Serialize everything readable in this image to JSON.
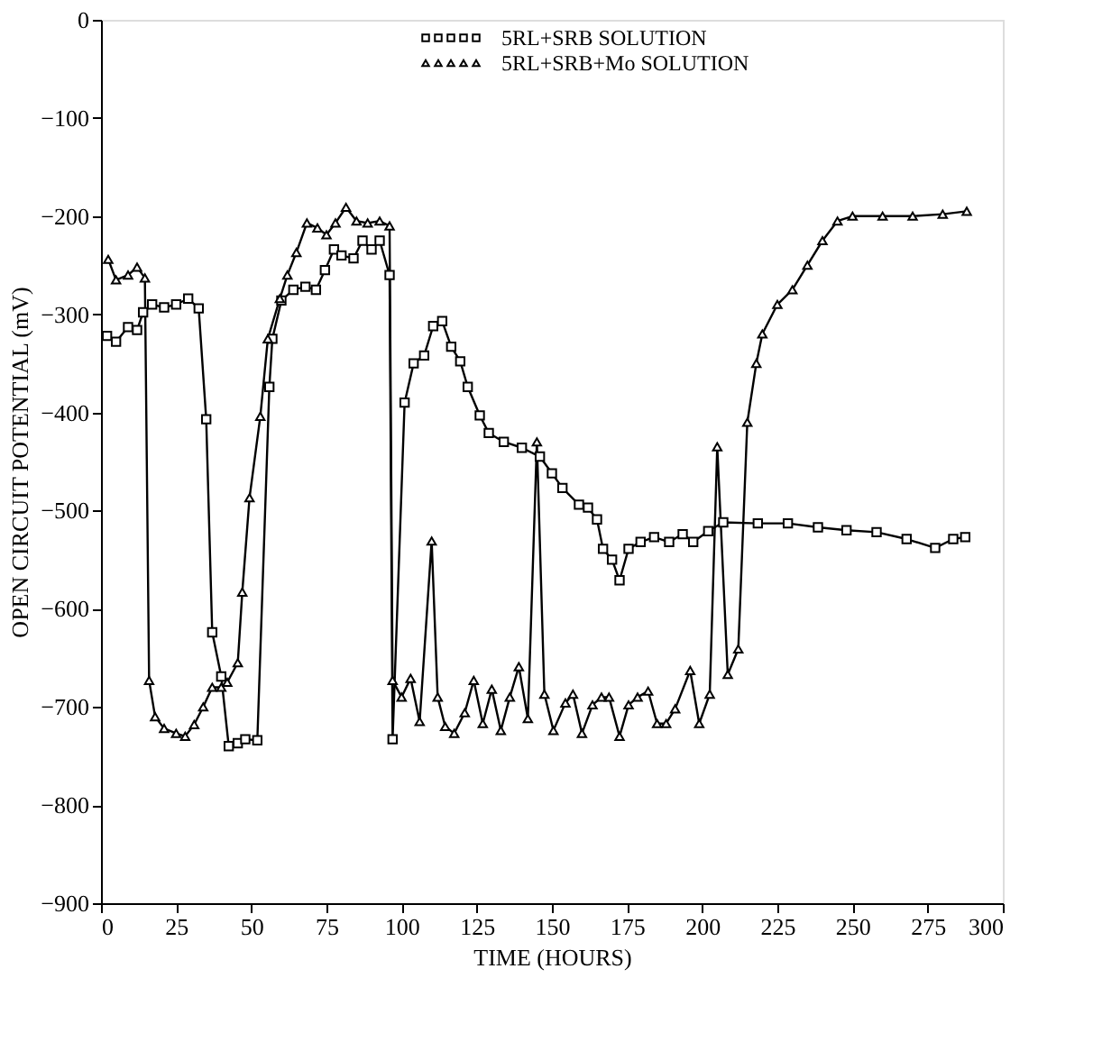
{
  "chart_data": {
    "type": "line",
    "xlabel": "TIME (HOURS)",
    "ylabel": "OPEN CIRCUIT POTENTIAL (mV)",
    "xlim": [
      0,
      300
    ],
    "xticks": [
      0,
      25,
      50,
      75,
      100,
      125,
      150,
      175,
      200,
      225,
      250,
      275,
      300
    ],
    "ylim": [
      -900,
      0
    ],
    "yticks": [
      0,
      -100,
      -200,
      -300,
      -400,
      -500,
      -600,
      -700,
      -800,
      -900
    ],
    "grid": false,
    "legend": "top",
    "series": [
      {
        "name": "5RL+SRB SOLUTION",
        "color": "#000000",
        "marker": "square",
        "x": [
          2,
          5,
          9,
          12,
          14,
          17,
          21,
          25,
          29,
          32.5,
          35,
          37,
          40,
          42.5,
          45.5,
          48,
          52,
          56,
          57,
          60,
          64,
          68,
          71.5,
          74.5,
          77.5,
          80,
          84,
          87,
          90,
          92.7,
          96,
          97,
          101,
          104,
          107.5,
          110.5,
          113.5,
          116.5,
          119.5,
          122,
          126,
          129,
          134,
          140,
          146,
          150,
          153.5,
          159,
          162,
          165,
          167,
          170,
          172.5,
          175.5,
          179.5,
          184,
          189,
          193.5,
          197,
          202,
          207,
          218.5,
          228.5,
          238.5,
          248,
          258,
          268,
          277.5,
          283.5,
          287.5
        ],
        "values": [
          -322,
          -328,
          -313,
          -316,
          -298,
          -290,
          -293,
          -290,
          -284,
          -294,
          -407,
          -624,
          -669,
          -740,
          -737,
          -733,
          -734,
          -374,
          -325,
          -286,
          -275,
          -272,
          -275,
          -255,
          -234,
          -240,
          -243,
          -225,
          -234,
          -225,
          -260,
          -733,
          -390,
          -350,
          -342,
          -312,
          -307,
          -333,
          -348,
          -374,
          -403,
          -421,
          -430,
          -436,
          -445,
          -462,
          -477,
          -494,
          -497,
          -509,
          -539,
          -550,
          -571,
          -539,
          -532,
          -527,
          -532,
          -524,
          -532,
          -521,
          -512,
          -513,
          -513,
          -517,
          -520,
          -522,
          -529,
          -538,
          -529,
          -527
        ]
      },
      {
        "name": "5RL+SRB+Mo SOLUTION",
        "color": "#000000",
        "marker": "triangle",
        "x": [
          2.4,
          5,
          9,
          12,
          14.6,
          16,
          18,
          21,
          25,
          28,
          31,
          34,
          37,
          40,
          42,
          45.5,
          47,
          49.4,
          53,
          55.5,
          59.5,
          62,
          65,
          68.5,
          72,
          75,
          78,
          81.5,
          85,
          88.7,
          92.7,
          96,
          97,
          100,
          103,
          106,
          110,
          112,
          114.5,
          117.5,
          121,
          124,
          127,
          130,
          133,
          136,
          139,
          142,
          145,
          147.5,
          150.5,
          154.5,
          157,
          160,
          163.5,
          166.5,
          169,
          172.5,
          175.5,
          178.5,
          182,
          185,
          188,
          191,
          196,
          199,
          202.5,
          205,
          208.5,
          212,
          215,
          218,
          220,
          225,
          230,
          235,
          240,
          245,
          250,
          260,
          270,
          280,
          288
        ],
        "values": [
          -244,
          -265,
          -260,
          -252,
          -263,
          -673,
          -710,
          -722,
          -727,
          -730,
          -718,
          -700,
          -680,
          -680,
          -675,
          -655,
          -583,
          -487,
          -404,
          -325,
          -284,
          -260,
          -237,
          -207,
          -212,
          -219,
          -207,
          -191,
          -205,
          -207,
          -205,
          -210,
          -673,
          -690,
          -671,
          -715,
          -531,
          -690,
          -720,
          -727,
          -706,
          -673,
          -717,
          -682,
          -724,
          -690,
          -659,
          -712,
          -430,
          -687,
          -724,
          -696,
          -687,
          -727,
          -698,
          -690,
          -690,
          -730,
          -698,
          -690,
          -684,
          -717,
          -717,
          -702,
          -663,
          -717,
          -687,
          -435,
          -667,
          -641,
          -410,
          -350,
          -320,
          -290,
          -275,
          -250,
          -225,
          -205,
          -200,
          -200,
          -200,
          -198,
          -195
        ]
      }
    ]
  }
}
